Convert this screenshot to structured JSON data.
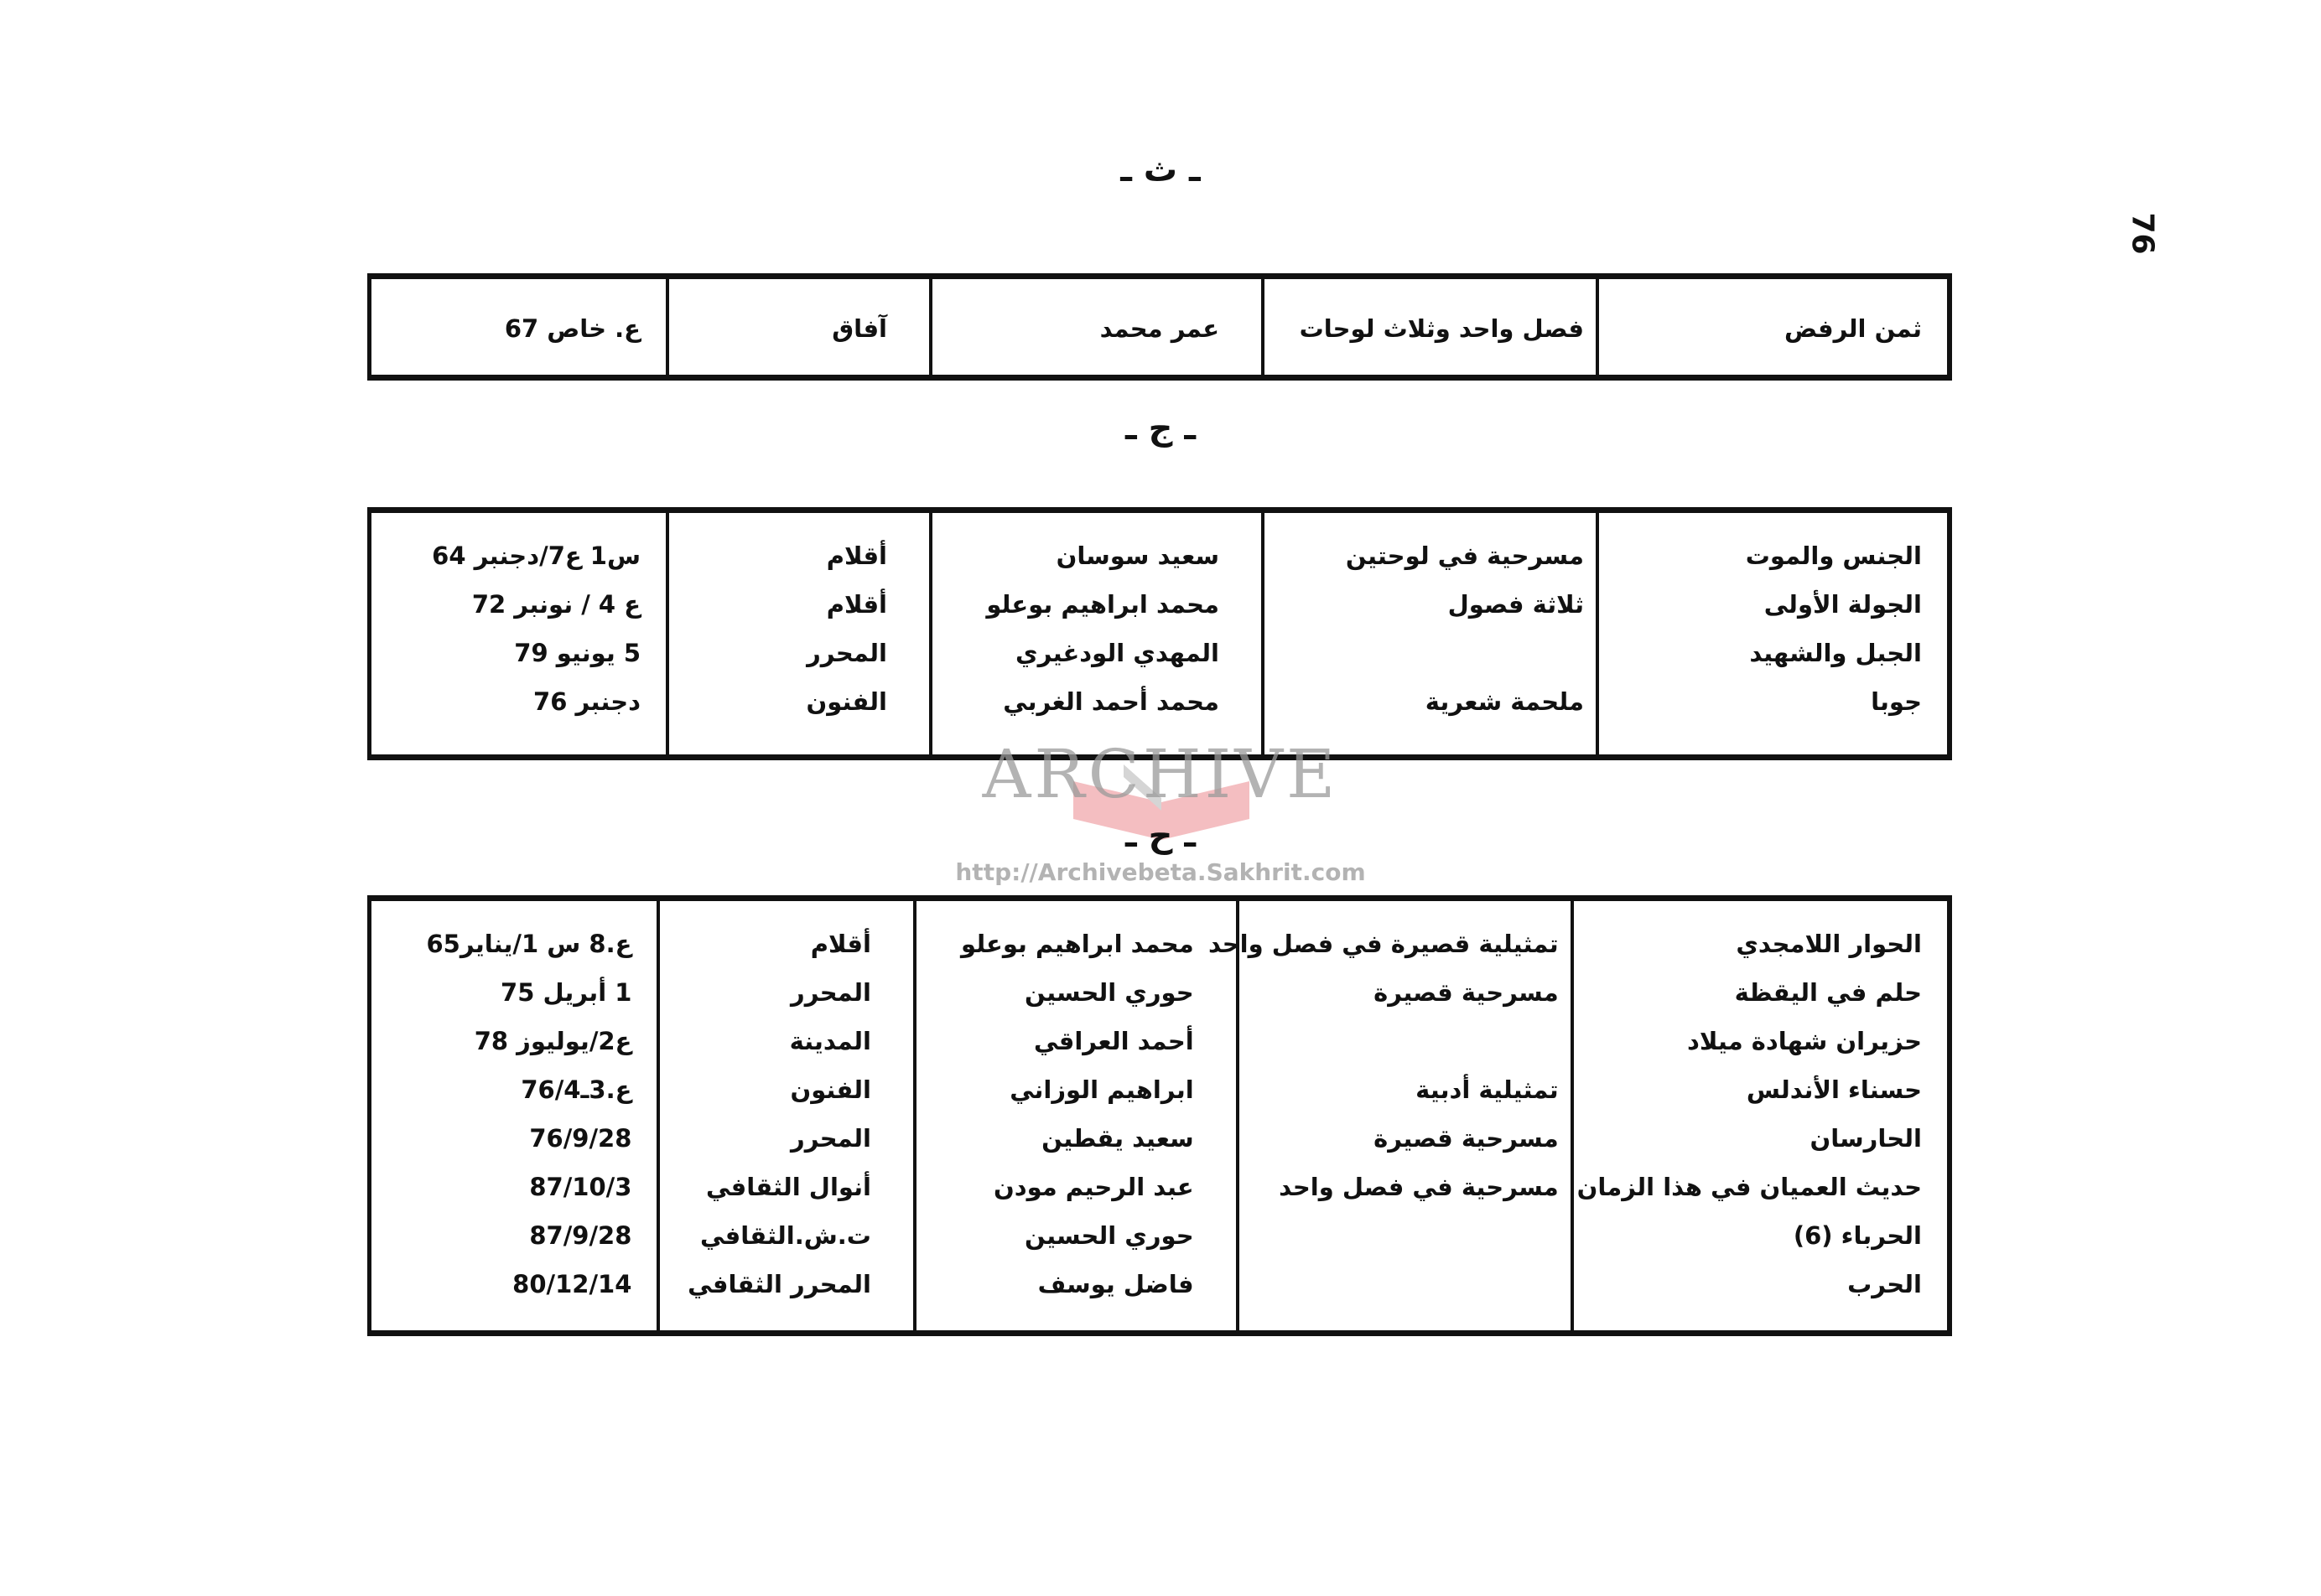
{
  "page_number": "76",
  "sections": [
    {
      "heading": "ـ ث ـ",
      "rows": [
        {
          "title": "ثمن الرفض",
          "genre": "فصل واحد وثلاث لوحات",
          "author": "عمر محمد",
          "publication": "آفاق",
          "issue": "ع. خاص 67"
        }
      ]
    },
    {
      "heading": "ـ ج ـ",
      "rows": [
        {
          "title": "الجنس والموت",
          "genre": "مسرحية في لوحتين",
          "author": "سعيد سوسان",
          "publication": "أقلام",
          "issue": "س1 ع7/دجنبر 64"
        },
        {
          "title": "الجولة الأولى",
          "genre": "ثلاثة فصول",
          "author": "محمد ابراهيم بوعلو",
          "publication": "أقلام",
          "issue": "ع 4 / نونبر 72"
        },
        {
          "title": "الجبل والشهيد",
          "genre": "",
          "author": "المهدي الودغيري",
          "publication": "المحرر",
          "issue": "5 يونيو 79"
        },
        {
          "title": "جوبا",
          "genre": "ملحمة شعرية",
          "author": "محمد أحمد الغربي",
          "publication": "الفنون",
          "issue": "دجنبر 76"
        }
      ]
    },
    {
      "heading": "ـ ح ـ",
      "rows": [
        {
          "title": "الحوار اللامجدي",
          "genre": "تمثيلية قصيرة في فصل واحد",
          "author": "محمد ابراهيم بوعلو",
          "publication": "أقلام",
          "issue": "ع.8 س 1/يناير65"
        },
        {
          "title": "حلم في اليقظة",
          "genre": "مسرحية قصيرة",
          "author": "حوري الحسين",
          "publication": "المحرر",
          "issue": "1 أبريل 75"
        },
        {
          "title": "حزيران شهادة ميلاد",
          "genre": "",
          "author": "أحمد العراقي",
          "publication": "المدينة",
          "issue": "ع2/يوليوز 78"
        },
        {
          "title": "حسناء الأندلس",
          "genre": "تمثيلية أدبية",
          "author": "ابراهيم الوزاني",
          "publication": "الفنون",
          "issue": "ع.3ـ76/4"
        },
        {
          "title": "الحارسان",
          "genre": "مسرحية قصيرة",
          "author": "سعيد يقطين",
          "publication": "المحرر",
          "issue": "76/9/28"
        },
        {
          "title": "حديث العميان في هذا الزمان",
          "genre": "مسرحية في فصل واحد",
          "author": "عبد الرحيم مودن",
          "publication": "أنوال الثقافي",
          "issue": "87/10/3"
        },
        {
          "title": "الحرباء (6)",
          "genre": "",
          "author": "حوري الحسين",
          "publication": "ت.ش.الثقافي",
          "issue": "87/9/28"
        },
        {
          "title": "الحرب",
          "genre": "",
          "author": "فاضل يوسف",
          "publication": "المحرر الثقافي",
          "issue": "80/12/14"
        }
      ]
    }
  ],
  "watermark": {
    "title": "ARCHIVE",
    "url": "http://Archivebeta.Sakhrit.com",
    "color": "#d9363e"
  }
}
